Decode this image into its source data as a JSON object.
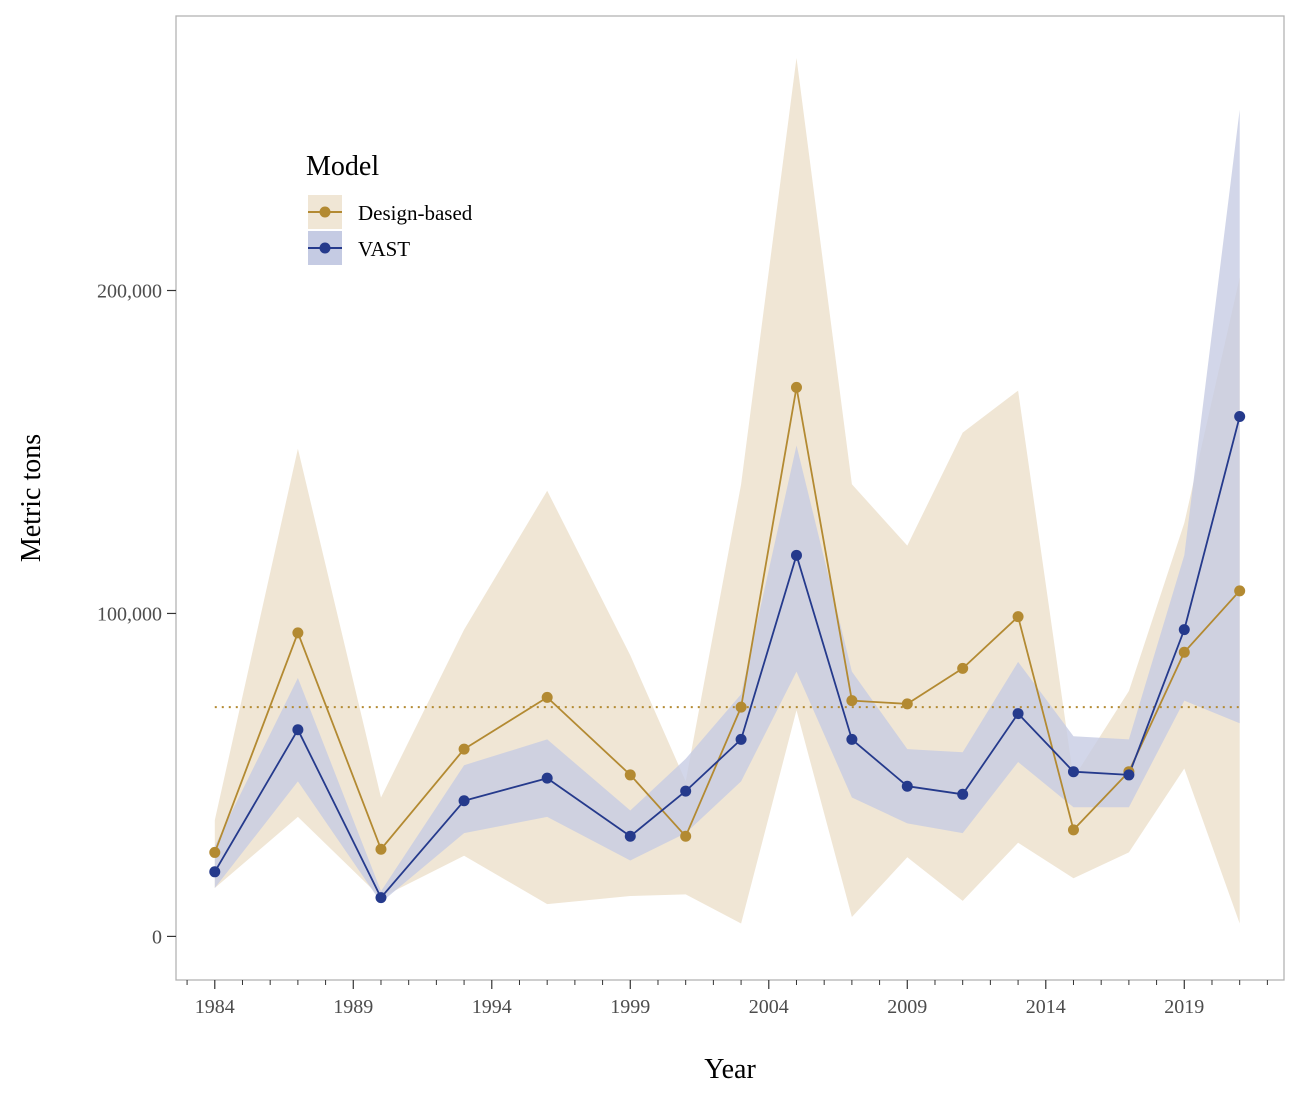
{
  "chart_data": {
    "type": "line",
    "xlabel": "Year",
    "ylabel": "Metric tons",
    "xlim": [
      1982.6,
      2022.6
    ],
    "ylim": [
      -13500,
      285000
    ],
    "x_ticks": [
      1984,
      1989,
      1994,
      1999,
      2004,
      2009,
      2014,
      2019
    ],
    "x_tick_labels": [
      "1984",
      "1989",
      "1994",
      "1999",
      "2004",
      "2009",
      "2014",
      "2019"
    ],
    "y_ticks": [
      0,
      100000,
      200000
    ],
    "y_tick_labels": [
      "0",
      "100,000",
      "200,000"
    ],
    "grid": false,
    "legend": {
      "title": "Model",
      "placement": "top-left",
      "entries": [
        "Design-based",
        "VAST"
      ]
    },
    "reference_line": {
      "y": 71000,
      "style": "dotted",
      "color": "#b38a32"
    },
    "series": [
      {
        "name": "Design-based",
        "color": "#b38a32",
        "band_color": "#f0e6d5",
        "x": [
          1984,
          1987,
          1990,
          1993,
          1996,
          1999,
          2001,
          2003,
          2005,
          2007,
          2009,
          2011,
          2013,
          2015,
          2017,
          2019,
          2021
        ],
        "values": [
          26000,
          94000,
          27000,
          58000,
          74000,
          50000,
          31000,
          71000,
          170000,
          73000,
          72000,
          83000,
          99000,
          33000,
          51000,
          88000,
          107000
        ],
        "lower": [
          15000,
          37000,
          12000,
          25000,
          10000,
          12500,
          13000,
          4000,
          70000,
          6000,
          24500,
          11000,
          29000,
          18000,
          26000,
          52000,
          4000
        ],
        "upper": [
          36000,
          151000,
          43000,
          95000,
          138000,
          87000,
          48000,
          140000,
          272000,
          140000,
          121000,
          156000,
          169000,
          49000,
          76000,
          128000,
          204000
        ]
      },
      {
        "name": "VAST",
        "color": "#253a8c",
        "band_color": "#c5cbe3",
        "x": [
          1984,
          1987,
          1990,
          1993,
          1996,
          1999,
          2001,
          2003,
          2005,
          2007,
          2009,
          2011,
          2013,
          2015,
          2017,
          2019,
          2021
        ],
        "values": [
          20000,
          64000,
          12000,
          42000,
          49000,
          31000,
          45000,
          61000,
          118000,
          61000,
          46500,
          44000,
          69000,
          51000,
          50000,
          95000,
          161000
        ],
        "lower": [
          15000,
          48000,
          10500,
          32000,
          37000,
          23500,
          32000,
          48000,
          82000,
          43000,
          35000,
          32000,
          54000,
          40000,
          40000,
          73000,
          66000
        ],
        "upper": [
          28000,
          80000,
          14000,
          53000,
          61000,
          39000,
          55000,
          75000,
          152000,
          82000,
          58000,
          57000,
          85000,
          62000,
          61000,
          118000,
          256000
        ]
      }
    ]
  }
}
